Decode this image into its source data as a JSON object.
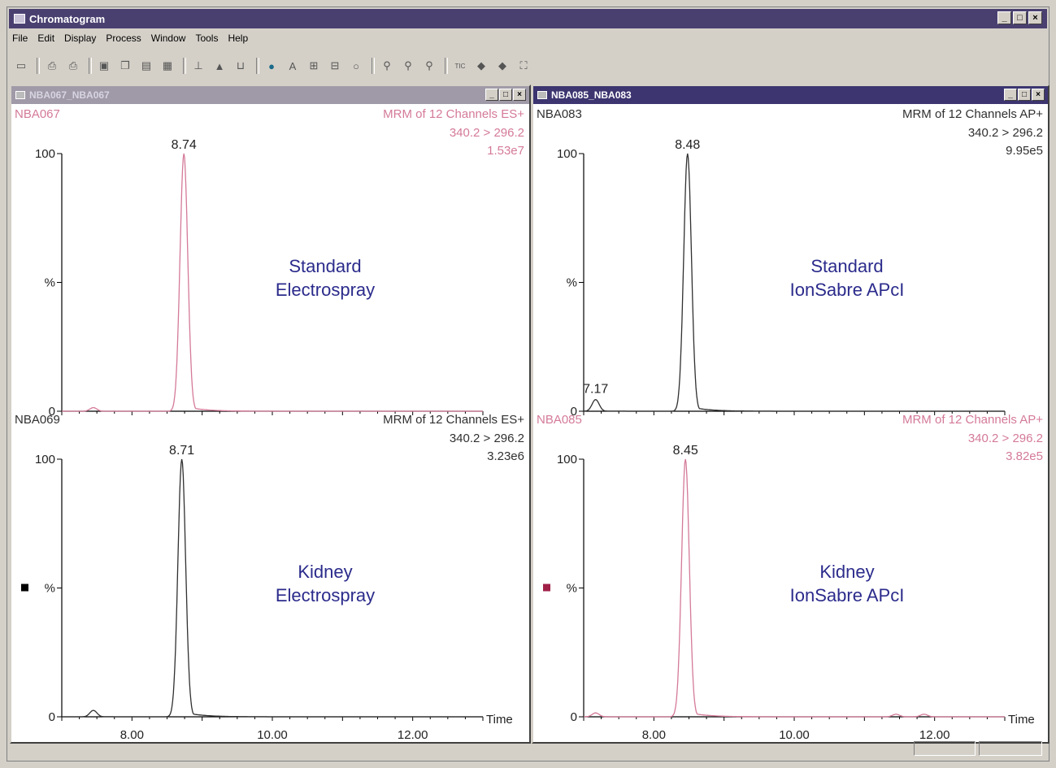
{
  "window": {
    "title": "Chromatogram",
    "controls": [
      "_",
      "□",
      "×"
    ]
  },
  "menu": [
    "File",
    "Edit",
    "Display",
    "Process",
    "Window",
    "Tools",
    "Help"
  ],
  "toolbar_icons": [
    "open-icon",
    "print-icon",
    "print-preview-icon",
    "camera-icon",
    "copy-icon",
    "paste-icon",
    "picture-icon",
    "spectrum-icon",
    "peak-icon",
    "integrate-icon",
    "globe-icon",
    "text-icon",
    "combine-icon",
    "subtract-icon",
    "refine-icon",
    "zoom-in-icon",
    "zoom-out-icon",
    "zoom-reset-icon",
    "tic-icon",
    "left-arrow-icon",
    "right-arrow-icon",
    "fit-icon"
  ],
  "toolbar_text": {
    "tic": "TIC"
  },
  "colors": {
    "pink": "#d47a98",
    "black": "#303030",
    "annotation": "#2b2b8c",
    "marker_black": "#000000",
    "marker_red": "#a02048"
  },
  "panels": [
    {
      "title": "NBA067_NBA067",
      "active": false,
      "traces": [
        {
          "sample": "NBA067",
          "channel": "MRM of 12 Channels ES+",
          "transition": "340.2 > 296.2",
          "intensity": "1.53e7",
          "peak_label": "8.74",
          "peak_rt": 8.74,
          "minor_peaks": [
            [
              7.45,
              0.014
            ]
          ],
          "color": "pink",
          "annotation": [
            "Standard",
            "Electrospray"
          ],
          "show_time": false,
          "marker": null
        },
        {
          "sample": "NBA069",
          "channel": "MRM of 12 Channels ES+",
          "transition": "340.2 > 296.2",
          "intensity": "3.23e6",
          "peak_label": "8.71",
          "peak_rt": 8.71,
          "minor_peaks": [
            [
              7.45,
              0.025
            ]
          ],
          "color": "black",
          "annotation": [
            "Kidney",
            "Electrospray"
          ],
          "show_time": true,
          "marker": "marker_black"
        }
      ]
    },
    {
      "title": "NBA085_NBA083",
      "active": true,
      "traces": [
        {
          "sample": "NBA083",
          "channel": "MRM of 12 Channels AP+",
          "transition": "340.2 > 296.2",
          "intensity": "9.95e5",
          "peak_label": "8.48",
          "peak_rt": 8.48,
          "minor_peaks": [
            [
              7.17,
              0.045
            ]
          ],
          "minor_label": "7.17",
          "color": "black",
          "annotation": [
            "Standard",
            "IonSabre APcI"
          ],
          "show_time": false,
          "marker": null
        },
        {
          "sample": "NBA085",
          "channel": "MRM of 12 Channels AP+",
          "transition": "340.2 > 296.2",
          "intensity": "3.82e5",
          "peak_label": "8.45",
          "peak_rt": 8.45,
          "minor_peaks": [
            [
              7.17,
              0.015
            ],
            [
              11.45,
              0.01
            ],
            [
              11.85,
              0.01
            ]
          ],
          "color": "pink",
          "annotation": [
            "Kidney",
            "IonSabre APcI"
          ],
          "show_time": true,
          "marker": "marker_red"
        }
      ]
    }
  ],
  "axis": {
    "y_labels": [
      "100",
      "%",
      "0"
    ],
    "x_ticks": [
      "8.00",
      "10.00",
      "12.00"
    ],
    "x_tick_values": [
      8,
      10,
      12
    ],
    "x_label": "Time",
    "x_range": [
      7.0,
      13.0
    ]
  }
}
